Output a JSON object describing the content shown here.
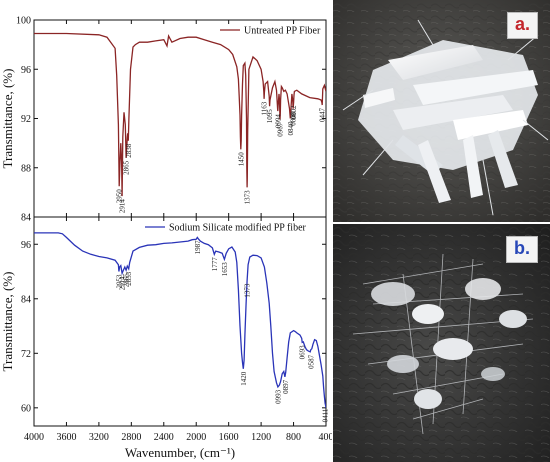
{
  "chart_data": [
    {
      "type": "line",
      "panel": "top",
      "title": "",
      "xlabel": "Wavenumber, (cm⁻¹)",
      "ylabel": "Transmittance, (%)",
      "xlim": [
        4000,
        400
      ],
      "ylim": [
        84,
        100
      ],
      "xticks": [
        "4000",
        "3600",
        "3200",
        "2800",
        "2400",
        "2000",
        "1600",
        "1200",
        "800",
        "400"
      ],
      "yticks": [
        "84",
        "88",
        "92",
        "96",
        "100"
      ],
      "legend_position": "top-right",
      "line_color": "#8b2525",
      "series": [
        {
          "name": "Untreated PP Fiber",
          "x": [
            4000,
            3600,
            3200,
            3100,
            3000,
            2980,
            2960,
            2950,
            2940,
            2930,
            2920,
            2914,
            2905,
            2890,
            2875,
            2870,
            2865,
            2860,
            2850,
            2845,
            2838,
            2830,
            2810,
            2780,
            2750,
            2700,
            2600,
            2500,
            2400,
            2360,
            2340,
            2300,
            2200,
            2100,
            2000,
            1900,
            1800,
            1700,
            1600,
            1550,
            1500,
            1480,
            1470,
            1460,
            1455,
            1450,
            1445,
            1440,
            1430,
            1420,
            1400,
            1390,
            1380,
            1376,
            1373,
            1370,
            1365,
            1350,
            1300,
            1250,
            1200,
            1175,
            1167,
            1163,
            1160,
            1150,
            1120,
            1100,
            1095,
            1090,
            1060,
            1030,
            1010,
            1000,
            997,
            994,
            990,
            980,
            975,
            972,
            970,
            967,
            964,
            960,
            950,
            940,
            920,
            900,
            880,
            850,
            843,
            840,
            837,
            830,
            820,
            810,
            808,
            805,
            800,
            795,
            790,
            760,
            700,
            600,
            500,
            460,
            450,
            447,
            444,
            440,
            420,
            400
          ],
          "y": [
            98.9,
            98.9,
            98.8,
            98.6,
            97.7,
            95.5,
            91.5,
            86.5,
            88.5,
            90.0,
            88.5,
            85.7,
            90.5,
            92.5,
            91.5,
            90.2,
            88.8,
            89.2,
            90.5,
            90.8,
            90.2,
            92.0,
            96.0,
            97.8,
            98.0,
            98.2,
            98.2,
            98.3,
            98.4,
            97.9,
            98.7,
            98.2,
            98.5,
            98.6,
            98.6,
            98.4,
            98.2,
            98.0,
            97.6,
            97.2,
            96.2,
            95.2,
            93.8,
            92.3,
            90.5,
            89.5,
            90.2,
            92.2,
            94.8,
            96.3,
            96.5,
            95.5,
            92.0,
            88.0,
            86.4,
            87.2,
            91.0,
            96.0,
            97.0,
            96.7,
            96.0,
            95.0,
            94.2,
            93.6,
            94.1,
            94.8,
            95.0,
            93.8,
            93.0,
            93.5,
            94.5,
            95.0,
            94.3,
            93.2,
            92.8,
            92.6,
            93.0,
            94.0,
            93.6,
            93.2,
            92.5,
            91.9,
            92.4,
            93.5,
            94.6,
            94.5,
            94.2,
            94.3,
            94.0,
            92.8,
            92.2,
            92.0,
            92.3,
            93.0,
            94.0,
            93.5,
            93.2,
            92.8,
            93.3,
            93.9,
            94.2,
            94.3,
            94.0,
            93.7,
            93.6,
            93.5,
            93.3,
            93.1,
            93.5,
            94.4,
            94.7,
            94.2
          ]
        }
      ],
      "peak_labels": [
        {
          "x": 2950,
          "y": 86.5,
          "label": "2950"
        },
        {
          "x": 2914,
          "y": 85.7,
          "label": "2914"
        },
        {
          "x": 2865,
          "y": 88.8,
          "label": "2865"
        },
        {
          "x": 2838,
          "y": 90.2,
          "label": "2838"
        },
        {
          "x": 1450,
          "y": 89.5,
          "label": "1450"
        },
        {
          "x": 1373,
          "y": 86.4,
          "label": "1373"
        },
        {
          "x": 1163,
          "y": 93.6,
          "label": "1163"
        },
        {
          "x": 1095,
          "y": 93.0,
          "label": "1095"
        },
        {
          "x": 994,
          "y": 92.6,
          "label": "0994"
        },
        {
          "x": 967,
          "y": 91.9,
          "label": "0967"
        },
        {
          "x": 840,
          "y": 92.0,
          "label": "0840"
        },
        {
          "x": 808,
          "y": 92.8,
          "label": "0808"
        },
        {
          "x": 802,
          "y": 93.3,
          "label": "0802"
        },
        {
          "x": 447,
          "y": 93.1,
          "label": "0447"
        }
      ]
    },
    {
      "type": "line",
      "panel": "bottom",
      "title": "",
      "xlabel": "Wavenumber, (cm⁻¹)",
      "ylabel": "Transmittance, (%)",
      "xlim": [
        4000,
        400
      ],
      "ylim": [
        56,
        102
      ],
      "xticks": [
        "4000",
        "3600",
        "3200",
        "2800",
        "2400",
        "2000",
        "1600",
        "1200",
        "800",
        "400"
      ],
      "yticks": [
        "60",
        "72",
        "84",
        "96"
      ],
      "legend_position": "top-right",
      "line_color": "#2a34b8",
      "series": [
        {
          "name": "Sodium Silicate modified PP fiber",
          "x": [
            4000,
            3700,
            3650,
            3600,
            3500,
            3400,
            3300,
            3200,
            3100,
            3000,
            2960,
            2953,
            2945,
            2930,
            2914,
            2900,
            2880,
            2865,
            2850,
            2833,
            2820,
            2780,
            2700,
            2600,
            2500,
            2400,
            2300,
            2200,
            2100,
            2050,
            2000,
            1987,
            1975,
            1950,
            1900,
            1850,
            1800,
            1777,
            1760,
            1720,
            1680,
            1653,
            1630,
            1600,
            1560,
            1520,
            1500,
            1480,
            1460,
            1440,
            1430,
            1420,
            1410,
            1400,
            1385,
            1373,
            1360,
            1340,
            1300,
            1250,
            1200,
            1160,
            1130,
            1100,
            1080,
            1060,
            1040,
            1010,
            993,
            975,
            960,
            940,
            920,
            907,
            897,
            880,
            860,
            840,
            800,
            780,
            760,
            720,
            700,
            693,
            680,
            660,
            640,
            620,
            595,
            587,
            575,
            560,
            540,
            520,
            500,
            480,
            460,
            440,
            430,
            420,
            411,
            405,
            400
          ],
          "y": [
            98.5,
            98.5,
            98.3,
            97.5,
            95.8,
            94.5,
            93.8,
            93.3,
            93.0,
            92.5,
            91.5,
            90.0,
            91.0,
            91.3,
            89.6,
            90.2,
            91.0,
            90.3,
            91.2,
            90.6,
            92.0,
            94.5,
            95.3,
            95.8,
            95.9,
            96.2,
            96.3,
            96.5,
            96.7,
            97.0,
            97.1,
            97.5,
            97.2,
            96.7,
            96.2,
            95.9,
            95.2,
            93.8,
            94.5,
            94.3,
            94.0,
            92.7,
            94.0,
            95.0,
            95.4,
            94.3,
            92.0,
            86.0,
            78.0,
            72.0,
            70.0,
            68.6,
            70.5,
            76.0,
            83.0,
            88.0,
            91.5,
            93.2,
            93.6,
            93.5,
            93.0,
            91.0,
            87.5,
            83.0,
            78.0,
            72.0,
            68.0,
            65.5,
            64.6,
            65.0,
            65.8,
            67.5,
            68.0,
            66.8,
            67.8,
            71.0,
            74.5,
            76.5,
            77.0,
            76.8,
            76.5,
            76.0,
            75.3,
            74.4,
            74.5,
            73.5,
            72.8,
            72.5,
            72.3,
            72.8,
            73.0,
            74.0,
            75.0,
            74.8,
            73.5,
            71.5,
            69.5,
            67.0,
            64.5,
            62.5,
            61.0,
            60.5,
            60.0
          ]
        }
      ],
      "peak_labels": [
        {
          "x": 2953,
          "y": 90.0,
          "label": "2953"
        },
        {
          "x": 2914,
          "y": 89.6,
          "label": "2914"
        },
        {
          "x": 2865,
          "y": 90.3,
          "label": "2865"
        },
        {
          "x": 2833,
          "y": 90.6,
          "label": "2833"
        },
        {
          "x": 1987,
          "y": 97.5,
          "label": "1987"
        },
        {
          "x": 1777,
          "y": 93.8,
          "label": "1777"
        },
        {
          "x": 1653,
          "y": 92.7,
          "label": "1653"
        },
        {
          "x": 1373,
          "y": 88.0,
          "label": "1373"
        },
        {
          "x": 1420,
          "y": 68.6,
          "label": "1420"
        },
        {
          "x": 993,
          "y": 64.6,
          "label": "0993"
        },
        {
          "x": 897,
          "y": 66.8,
          "label": "0897"
        },
        {
          "x": 693,
          "y": 74.4,
          "label": "0693"
        },
        {
          "x": 587,
          "y": 72.3,
          "label": "0587"
        },
        {
          "x": 411,
          "y": 60.5,
          "label": "0411"
        }
      ]
    }
  ],
  "photos": {
    "a_label": "a.",
    "b_label": "b."
  }
}
